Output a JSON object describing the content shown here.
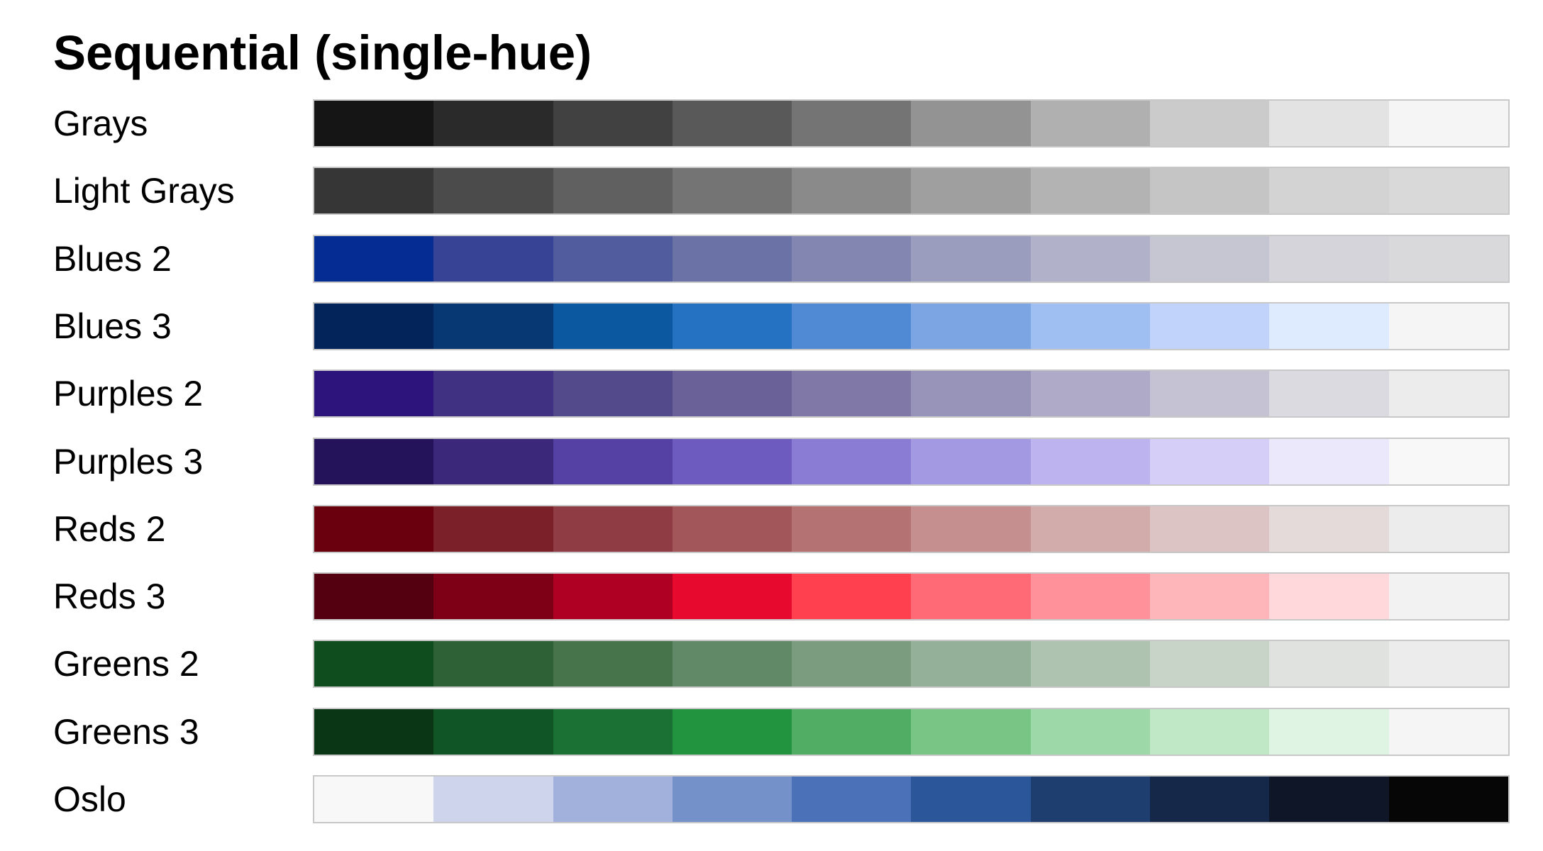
{
  "title": "Sequential (single-hue)",
  "chart_data": {
    "type": "heatmap",
    "title": "Sequential (single-hue)",
    "palettes": [
      {
        "name": "Grays",
        "colors": [
          "#151515",
          "#2a2a2a",
          "#414141",
          "#595959",
          "#747474",
          "#939393",
          "#b0b0b0",
          "#cbcbcb",
          "#e3e3e3",
          "#f5f5f5"
        ]
      },
      {
        "name": "Light Grays",
        "colors": [
          "#363636",
          "#4b4b4b",
          "#606060",
          "#747474",
          "#8a8a8a",
          "#9f9f9f",
          "#b3b3b3",
          "#c5c5c5",
          "#d3d3d3",
          "#d9d9d9"
        ]
      },
      {
        "name": "Blues 2",
        "colors": [
          "#052c93",
          "#374496",
          "#505c9d",
          "#6a72a6",
          "#8286b0",
          "#9b9dbf",
          "#b1b2c9",
          "#c6c6d3",
          "#d4d4da",
          "#d9d9db"
        ]
      },
      {
        "name": "Blues 3",
        "colors": [
          "#02245a",
          "#083874",
          "#0b57a0",
          "#2572c2",
          "#508ad4",
          "#7ba6e3",
          "#9fbef2",
          "#c1d3fa",
          "#deeafe",
          "#f5f5f5"
        ]
      },
      {
        "name": "Purples 2",
        "colors": [
          "#2d137c",
          "#403183",
          "#534a8b",
          "#6a6199",
          "#8079a8",
          "#9893b9",
          "#aeaac7",
          "#c5c2d4",
          "#dbdae0",
          "#ececec"
        ]
      },
      {
        "name": "Purples 3",
        "colors": [
          "#24135b",
          "#3b287b",
          "#5541a3",
          "#6e5bbf",
          "#8a7bd4",
          "#a399e2",
          "#bdb4ef",
          "#d5cff7",
          "#ebe8fc",
          "#f8f8f8"
        ]
      },
      {
        "name": "Reds 2",
        "colors": [
          "#6a000e",
          "#7b1f28",
          "#8f3c44",
          "#a3565a",
          "#b57273",
          "#c58e8f",
          "#d2abab",
          "#dcc4c4",
          "#e4dada",
          "#ececec"
        ]
      },
      {
        "name": "Reds 3",
        "colors": [
          "#550010",
          "#7d0017",
          "#af0023",
          "#e70a2e",
          "#ff404f",
          "#ff6a76",
          "#ff919a",
          "#ffb6bb",
          "#ffd8db",
          "#f2f2f2"
        ]
      },
      {
        "name": "Greens 2",
        "colors": [
          "#0f4d1e",
          "#2e6135",
          "#48744c",
          "#618967",
          "#7b9c7e",
          "#94b099",
          "#afc3b1",
          "#c9d4c9",
          "#dfe2df",
          "#ececec"
        ]
      },
      {
        "name": "Greens 3",
        "colors": [
          "#0b3616",
          "#0f5525",
          "#1b7133",
          "#22933e",
          "#51ac64",
          "#79c585",
          "#9dd8a8",
          "#c1e8c6",
          "#e0f4e3",
          "#f5f5f5"
        ]
      },
      {
        "name": "Oslo",
        "colors": [
          "#f8f8f8",
          "#ced4eb",
          "#a2b1db",
          "#7591c9",
          "#4b71b9",
          "#2b579a",
          "#1f3e70",
          "#152849",
          "#0e1627",
          "#060606"
        ]
      }
    ]
  }
}
